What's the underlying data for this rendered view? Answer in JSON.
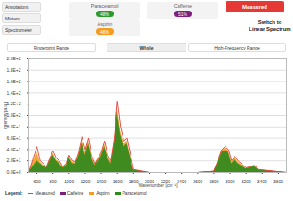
{
  "ui": {
    "menu": [
      "Annotations",
      "Mixture",
      "Spectrometer"
    ],
    "components": [
      {
        "name": "Paracetamol",
        "value": "48%",
        "color": "#2e9a2e"
      },
      {
        "name": "Caffeine",
        "value": "51%",
        "color": "#7b1f7a"
      },
      {
        "name": "Aspirin",
        "value": "46%",
        "color": "#f39c1f"
      }
    ],
    "mode": "Measured",
    "switch": [
      "Switch to",
      "Linear Spectrum"
    ],
    "ranges": [
      "Fingerprint Range",
      "Whole",
      "High-Frequency Range"
    ],
    "legend_title": "Legend:"
  },
  "chart_data": {
    "type": "area",
    "x_label": "Wavenumber [cm⁻¹]",
    "y_label": "Intensity [a.u.]",
    "xlim": [
      500,
      3700
    ],
    "xticks": [
      600,
      800,
      1000,
      1200,
      1400,
      1600,
      1800,
      2000,
      2200,
      2400,
      2600,
      2800,
      3000,
      3200,
      3400,
      3600
    ],
    "ylim": [
      0,
      200
    ],
    "yticks": [
      {
        "value": 0,
        "label": "0.0E+0"
      },
      {
        "value": 20,
        "label": "2.0E+1"
      },
      {
        "value": 40,
        "label": "4.0E+1"
      },
      {
        "value": 60,
        "label": "6.0E+1"
      },
      {
        "value": 80,
        "label": "8.0E+1"
      },
      {
        "value": 100,
        "label": "1.0E+2"
      },
      {
        "value": 120,
        "label": "1.2E+2"
      },
      {
        "value": 140,
        "label": "1.4E+2"
      },
      {
        "value": 160,
        "label": "1.6E+2"
      },
      {
        "value": 180,
        "label": "1.8E+2"
      },
      {
        "value": 200,
        "label": "2.0E+2"
      }
    ],
    "grid": true,
    "legend": "bottom-left",
    "x": [
      500,
      600,
      640,
      680,
      720,
      760,
      800,
      840,
      880,
      920,
      960,
      1000,
      1040,
      1080,
      1120,
      1160,
      1200,
      1240,
      1280,
      1320,
      1360,
      1400,
      1440,
      1480,
      1520,
      1560,
      1600,
      1640,
      1680,
      1720,
      1800,
      2000,
      2600,
      2800,
      2860,
      2900,
      2940,
      2980,
      3020,
      3060,
      3100,
      3200,
      3300,
      3360,
      3700
    ],
    "series": [
      {
        "name": "Measured",
        "type": "line",
        "color": "#e0413a",
        "values": [
          0,
          45,
          20,
          15,
          10,
          25,
          38,
          25,
          20,
          10,
          15,
          30,
          20,
          18,
          35,
          62,
          40,
          60,
          30,
          15,
          25,
          35,
          55,
          30,
          20,
          60,
          125,
          80,
          55,
          60,
          5,
          0,
          0,
          2,
          25,
          40,
          45,
          40,
          20,
          28,
          20,
          8,
          12,
          5,
          0
        ]
      },
      {
        "name": "Caffeine",
        "type": "area",
        "color": "#7b1f7a",
        "values": [
          0,
          15,
          10,
          8,
          6,
          12,
          20,
          14,
          10,
          6,
          8,
          18,
          10,
          10,
          20,
          38,
          24,
          40,
          18,
          8,
          14,
          20,
          35,
          18,
          10,
          40,
          90,
          55,
          35,
          42,
          3,
          0,
          0,
          1,
          15,
          28,
          30,
          28,
          12,
          18,
          12,
          5,
          8,
          3,
          0
        ]
      },
      {
        "name": "Aspirin",
        "type": "area",
        "color": "#f39c1f",
        "values": [
          0,
          35,
          18,
          12,
          9,
          22,
          34,
          22,
          18,
          9,
          13,
          28,
          18,
          16,
          32,
          56,
          36,
          55,
          28,
          14,
          23,
          32,
          50,
          28,
          18,
          55,
          115,
          72,
          50,
          55,
          4,
          0,
          0,
          2,
          22,
          38,
          42,
          38,
          18,
          25,
          18,
          7,
          11,
          4,
          0
        ]
      },
      {
        "name": "Paracetamol",
        "type": "area",
        "color": "#2e8b1e",
        "values": [
          0,
          20,
          15,
          10,
          8,
          20,
          30,
          20,
          15,
          8,
          10,
          25,
          15,
          15,
          28,
          50,
          30,
          50,
          25,
          12,
          20,
          28,
          45,
          25,
          15,
          50,
          105,
          65,
          45,
          50,
          4,
          0,
          0,
          2,
          20,
          35,
          38,
          35,
          15,
          22,
          15,
          6,
          10,
          4,
          0
        ]
      }
    ]
  }
}
